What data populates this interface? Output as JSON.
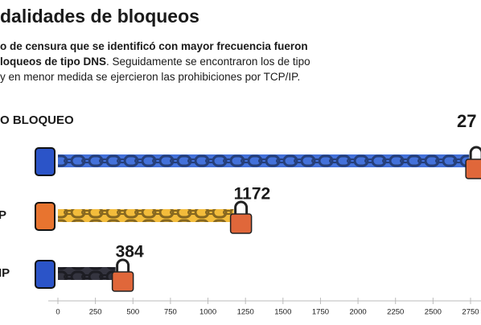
{
  "chart_data": {
    "type": "bar",
    "orientation": "horizontal",
    "title": "dalidades de bloqueos",
    "subtitle": [
      [
        {
          "text": "o de censura que se identificó con mayor frecuencia fueron",
          "bold": true
        }
      ],
      [
        {
          "text": "loqueos de tipo DNS",
          "bold": true
        },
        {
          "text": ". Seguidamente se encontraron los de tipo",
          "bold": false
        }
      ],
      [
        {
          "text": "y en menor medida se ejercieron las prohibiciones por TCP/IP.",
          "bold": false
        }
      ]
    ],
    "axis_header": "O BLOQUEO",
    "annotations": [
      "27"
    ],
    "categories": [
      null,
      "P",
      "IP"
    ],
    "values": [
      2740,
      1172,
      384
    ],
    "value_labels": [
      null,
      "1172",
      "384"
    ],
    "colors": [
      "#2f62d6",
      "#f2b526",
      "#1e1e2a"
    ],
    "xlim": [
      0,
      2820
    ],
    "xticks": [
      0,
      250,
      500,
      750,
      1000,
      1250,
      1500,
      1750,
      2000,
      2250,
      2500,
      2750
    ]
  }
}
